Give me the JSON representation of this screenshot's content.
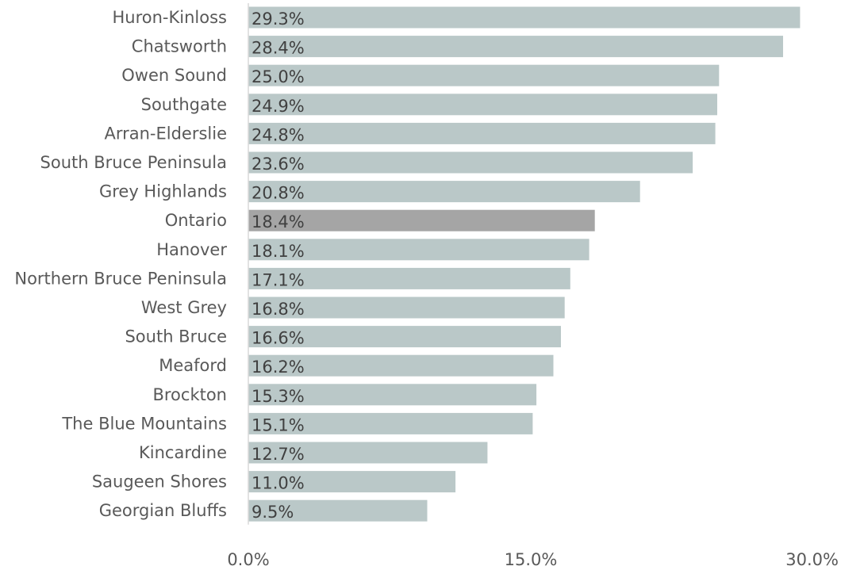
{
  "chart_data": {
    "type": "bar",
    "orientation": "horizontal",
    "title": "",
    "xlabel": "",
    "ylabel": "",
    "categories": [
      "Huron-Kinloss",
      "Chatsworth",
      "Owen Sound",
      "Southgate",
      "Arran-Elderslie",
      "South Bruce Peninsula",
      "Grey Highlands",
      "Ontario",
      "Hanover",
      "Northern Bruce Peninsula",
      "West Grey",
      "South Bruce",
      "Meaford",
      "Brockton",
      "The Blue Mountains",
      "Kincardine",
      "Saugeen Shores",
      "Georgian Bluffs"
    ],
    "values": [
      29.3,
      28.4,
      25.0,
      24.9,
      24.8,
      23.6,
      20.8,
      18.4,
      18.1,
      17.1,
      16.8,
      16.6,
      16.2,
      15.3,
      15.1,
      12.7,
      11.0,
      9.5
    ],
    "data_labels": [
      "29.3%",
      "28.4%",
      "25.0%",
      "24.9%",
      "24.8%",
      "23.6%",
      "20.8%",
      "18.4%",
      "18.1%",
      "17.1%",
      "16.8%",
      "16.6%",
      "16.2%",
      "15.3%",
      "15.1%",
      "12.7%",
      "11.0%",
      "9.5%"
    ],
    "highlight_category": "Ontario",
    "xlim": [
      0,
      30
    ],
    "x_ticks": [
      0,
      15,
      30
    ],
    "x_tick_labels": [
      "0.0%",
      "15.0%",
      "30.0%"
    ],
    "grid": false,
    "legend": "none",
    "colors": {
      "bar": "#bac8c8",
      "highlight_bar": "#a5a5a5",
      "axis": "#d9d9d9"
    }
  }
}
